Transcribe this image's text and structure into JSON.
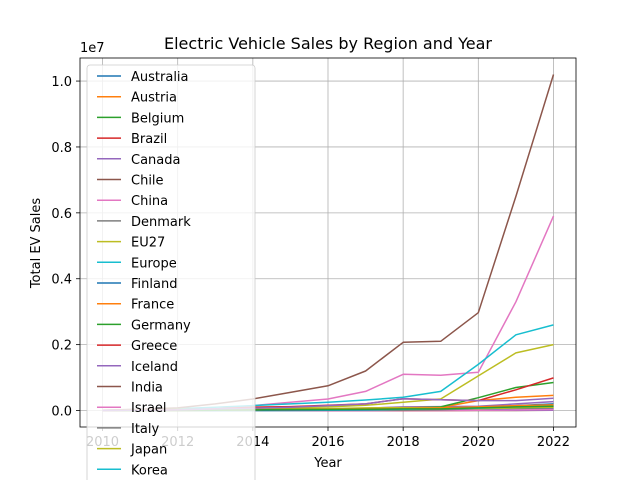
{
  "chart_data": {
    "type": "line",
    "title": "Electric Vehicle Sales by Region and Year",
    "xlabel": "Year",
    "ylabel": "Total EV Sales",
    "y_multiplier_label": "1e7",
    "xlim": [
      2009.4,
      2022.6
    ],
    "ylim": [
      -0.05,
      1.07
    ],
    "y_scale_factor": 10000000,
    "x_ticks": [
      2010,
      2012,
      2014,
      2016,
      2018,
      2020,
      2022
    ],
    "y_ticks": [
      0.0,
      0.2,
      0.4,
      0.6,
      0.8,
      1.0
    ],
    "y_tick_labels": [
      "0.0",
      "0.2",
      "0.4",
      "0.6",
      "0.8",
      "1.0"
    ],
    "grid": true,
    "legend_position": "upper-left",
    "x": [
      2010,
      2011,
      2012,
      2013,
      2014,
      2015,
      2016,
      2017,
      2018,
      2019,
      2020,
      2021,
      2022
    ],
    "series": [
      {
        "name": "Australia",
        "color": "#1f77b4",
        "values": [
          0.0,
          0.0,
          0.0,
          0.0,
          0.0,
          0.0,
          0.0,
          0.001,
          0.002,
          0.002,
          0.002,
          0.005,
          0.008
        ]
      },
      {
        "name": "Austria",
        "color": "#ff7f0e",
        "values": [
          0.0,
          0.0,
          0.0,
          0.0,
          0.001,
          0.001,
          0.001,
          0.002,
          0.002,
          0.003,
          0.006,
          0.009,
          0.01
        ]
      },
      {
        "name": "Belgium",
        "color": "#2ca02c",
        "values": [
          0.0,
          0.0,
          0.0,
          0.0,
          0.001,
          0.001,
          0.002,
          0.003,
          0.003,
          0.004,
          0.007,
          0.012,
          0.018
        ]
      },
      {
        "name": "Brazil",
        "color": "#d62728",
        "values": [
          0.0,
          0.0,
          0.0,
          0.0,
          0.0,
          0.0,
          0.0,
          0.0,
          0.0,
          0.001,
          0.001,
          0.003,
          0.005
        ]
      },
      {
        "name": "Canada",
        "color": "#9467bd",
        "values": [
          0.0,
          0.0,
          0.0,
          0.001,
          0.002,
          0.003,
          0.004,
          0.007,
          0.011,
          0.012,
          0.013,
          0.02,
          0.027
        ]
      },
      {
        "name": "Chile",
        "color": "#8c564b",
        "values": [
          0.0,
          0.0,
          0.0,
          0.0,
          0.0,
          0.0,
          0.0,
          0.0,
          0.0,
          0.0,
          0.0,
          0.0,
          0.001
        ]
      },
      {
        "name": "China",
        "color": "#e377c2",
        "values": [
          0.001,
          0.002,
          0.003,
          0.005,
          0.015,
          0.025,
          0.035,
          0.058,
          0.11,
          0.107,
          0.116,
          0.33,
          0.59
        ]
      },
      {
        "name": "Denmark",
        "color": "#7f7f7f",
        "values": [
          0.0,
          0.0,
          0.0,
          0.0,
          0.001,
          0.001,
          0.001,
          0.001,
          0.001,
          0.002,
          0.004,
          0.007,
          0.008
        ]
      },
      {
        "name": "EU27",
        "color": "#bcbd22",
        "values": [
          0.0,
          0.0,
          0.001,
          0.002,
          0.004,
          0.009,
          0.011,
          0.016,
          0.025,
          0.035,
          0.105,
          0.175,
          0.2
        ]
      },
      {
        "name": "Europe",
        "color": "#17becf",
        "values": [
          0.001,
          0.003,
          0.006,
          0.01,
          0.015,
          0.02,
          0.025,
          0.032,
          0.04,
          0.058,
          0.14,
          0.23,
          0.26
        ]
      },
      {
        "name": "Finland",
        "color": "#1f77b4",
        "values": [
          0.0,
          0.0,
          0.0,
          0.0,
          0.0,
          0.0,
          0.0,
          0.0,
          0.001,
          0.001,
          0.002,
          0.003,
          0.004
        ]
      },
      {
        "name": "France",
        "color": "#ff7f0e",
        "values": [
          0.0,
          0.0,
          0.001,
          0.001,
          0.002,
          0.004,
          0.005,
          0.006,
          0.008,
          0.01,
          0.03,
          0.04,
          0.046
        ]
      },
      {
        "name": "Germany",
        "color": "#2ca02c",
        "values": [
          0.0,
          0.0,
          0.0,
          0.001,
          0.001,
          0.002,
          0.003,
          0.005,
          0.007,
          0.011,
          0.039,
          0.07,
          0.085
        ]
      },
      {
        "name": "Greece",
        "color": "#d62728",
        "values": [
          0.0,
          0.0,
          0.0,
          0.0,
          0.0,
          0.0,
          0.0,
          0.0,
          0.0,
          0.0,
          0.001,
          0.001,
          0.002
        ]
      },
      {
        "name": "Iceland",
        "color": "#9467bd",
        "values": [
          0.0,
          0.0,
          0.0,
          0.0,
          0.0,
          0.0,
          0.0,
          0.0,
          0.001,
          0.001,
          0.001,
          0.001,
          0.001
        ]
      },
      {
        "name": "India",
        "color": "#8c564b",
        "values": [
          0.001,
          0.004,
          0.008,
          0.02,
          0.035,
          0.055,
          0.075,
          0.12,
          0.207,
          0.21,
          0.297,
          0.65,
          1.02
        ]
      },
      {
        "name": "Israel",
        "color": "#e377c2",
        "values": [
          0.0,
          0.0,
          0.0,
          0.0,
          0.0,
          0.0,
          0.0,
          0.0,
          0.0,
          0.0,
          0.001,
          0.002,
          0.003
        ]
      },
      {
        "name": "Italy",
        "color": "#7f7f7f",
        "values": [
          0.0,
          0.0,
          0.0,
          0.0,
          0.0,
          0.001,
          0.001,
          0.001,
          0.001,
          0.002,
          0.006,
          0.014,
          0.016
        ]
      },
      {
        "name": "Japan",
        "color": "#bcbd22",
        "values": [
          0.001,
          0.002,
          0.003,
          0.004,
          0.005,
          0.006,
          0.006,
          0.008,
          0.009,
          0.009,
          0.006,
          0.008,
          0.01
        ]
      },
      {
        "name": "Korea",
        "color": "#17becf",
        "values": [
          0.0,
          0.0,
          0.0,
          0.0,
          0.0,
          0.0,
          0.001,
          0.002,
          0.004,
          0.006,
          0.007,
          0.012,
          0.016
        ]
      },
      {
        "name": "",
        "color": "#1f77b4",
        "values": [
          0.0,
          0.0,
          0.0,
          0.0,
          0.001,
          0.001,
          0.002,
          0.003,
          0.005,
          0.007,
          0.01,
          0.015,
          0.02
        ]
      },
      {
        "name": "",
        "color": "#ff7f0e",
        "values": [
          0.0,
          0.0,
          0.0,
          0.001,
          0.002,
          0.003,
          0.004,
          0.005,
          0.006,
          0.008,
          0.011,
          0.015,
          0.017
        ]
      },
      {
        "name": "",
        "color": "#2ca02c",
        "values": [
          0.0,
          0.0,
          0.0,
          0.001,
          0.002,
          0.003,
          0.003,
          0.004,
          0.005,
          0.005,
          0.008,
          0.011,
          0.013
        ]
      },
      {
        "name": "",
        "color": "#d62728",
        "values": [
          0.0,
          0.001,
          0.002,
          0.005,
          0.01,
          0.012,
          0.016,
          0.02,
          0.036,
          0.033,
          0.03,
          0.063,
          0.099
        ]
      },
      {
        "name": "",
        "color": "#9467bd",
        "values": [
          0.0,
          0.001,
          0.002,
          0.005,
          0.007,
          0.01,
          0.015,
          0.02,
          0.036,
          0.033,
          0.03,
          0.03,
          0.037
        ]
      }
    ]
  }
}
